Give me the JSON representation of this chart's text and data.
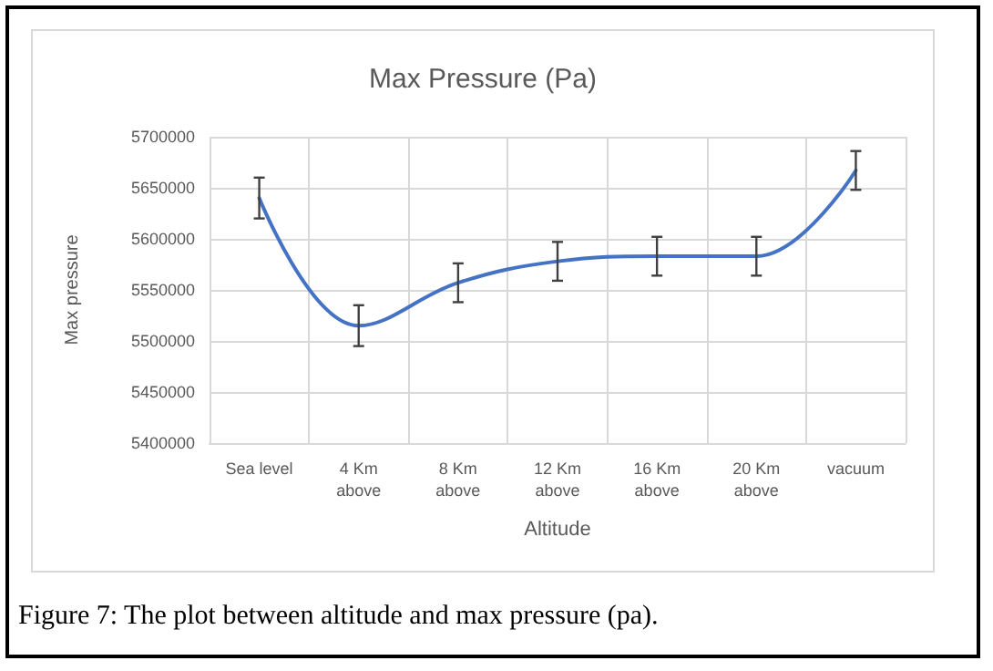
{
  "chart_data": {
    "type": "line",
    "title": "Max Pressure (Pa)",
    "xlabel": "Altitude",
    "ylabel": "Max pressure",
    "categories": [
      "Sea level",
      "4 Km\nabove",
      "8 Km\nabove",
      "12 Km\nabove",
      "16 Km\nabove",
      "20 Km\nabove",
      "vacuum"
    ],
    "series": [
      {
        "color": "#4472c4",
        "values": [
          5640000,
          5515000,
          5557000,
          5578000,
          5583000,
          5583000,
          5667000
        ],
        "errors": [
          20000,
          20000,
          19000,
          19000,
          19000,
          19000,
          19000
        ]
      }
    ],
    "ylim": [
      5400000,
      5700000
    ],
    "yticks": [
      5400000,
      5450000,
      5500000,
      5550000,
      5600000,
      5650000,
      5700000
    ],
    "grid": true,
    "marker": "none",
    "line_style": "solid",
    "annotations": [
      "Figure 7: The plot between altitude and max pressure (pa)."
    ]
  }
}
